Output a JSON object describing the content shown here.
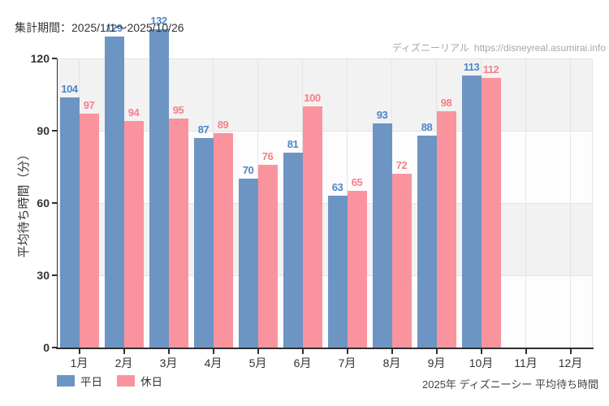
{
  "header": {
    "period_label": "集計期間：2025/1/1～2025/10/26"
  },
  "watermark": {
    "site_name": "ディズニーリアル",
    "url": "https://disneyreal.asumirai.info"
  },
  "footer": {
    "caption": "2025年 ディズニーシー 平均待ち時間"
  },
  "colors": {
    "weekday_bar": "#6d95c4",
    "weekday_label": "#4e86c6",
    "holiday_bar": "#f9939d",
    "holiday_label": "#f87e89",
    "band_gray": "#f2f2f2",
    "band_white": "#fdfdfd",
    "gridline": "#e4e4e4",
    "axis": "#2f2f2f",
    "text": "#333333",
    "watermark_text": "#a6a6a6"
  },
  "chart_data": {
    "type": "bar",
    "title": "2025年 ディズニーシー 平均待ち時間",
    "subtitle": "集計期間：2025/1/1～2025/10/26",
    "categories": [
      "1月",
      "2月",
      "3月",
      "4月",
      "5月",
      "6月",
      "7月",
      "8月",
      "9月",
      "10月",
      "11月",
      "12月"
    ],
    "series": [
      {
        "name": "平日",
        "color": "#6d95c4",
        "label_color": "#4e86c6",
        "values": [
          104,
          129,
          132,
          87,
          70,
          81,
          63,
          93,
          88,
          113,
          null,
          null
        ]
      },
      {
        "name": "休日",
        "color": "#f9939d",
        "label_color": "#f87e89",
        "values": [
          97,
          94,
          95,
          89,
          76,
          100,
          65,
          72,
          98,
          112,
          null,
          null
        ]
      }
    ],
    "xlabel": "",
    "ylabel": "平均待ち時間（分）",
    "ylim": [
      0,
      120
    ],
    "yticks": [
      0,
      30,
      60,
      90,
      120
    ],
    "grid": "alternating horizontal bands + vertical gridlines at category centers",
    "legend_position": "bottom-left",
    "value_labels": "above each bar"
  }
}
